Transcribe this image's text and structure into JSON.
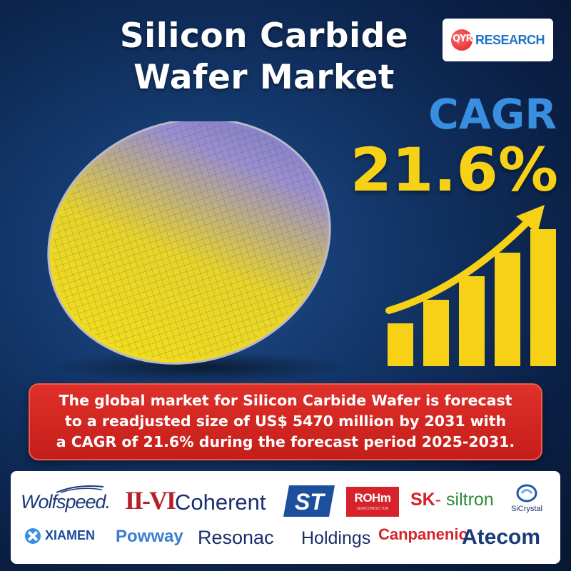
{
  "title": {
    "line1": "Silicon Carbide",
    "line2": "Wafer Market"
  },
  "logo": {
    "mark": "QYR",
    "text": "RESEARCH",
    "colors": {
      "mark": "#e02020",
      "text": "#1b74c9"
    }
  },
  "cagr": {
    "label": "CAGR",
    "value": "21.6%"
  },
  "chart_visual": {
    "type": "bar",
    "bar_count": 5,
    "trend": "increasing",
    "arrow": "up-right",
    "color": "#f7d116"
  },
  "message": {
    "line1": "The global market for Silicon Carbide Wafer is forecast",
    "line2": "to a readjusted size of US$ 5470 million by 2031 with",
    "line3": "a CAGR of 21.6% during the forecast period 2025-2031."
  },
  "companies": {
    "wolfspeed": "Wolfspeed.",
    "iivi": "II-VI",
    "coherent": "Coherent",
    "st": "ST",
    "rohm": "ROHm",
    "rohm_sub": "SEMICONDUCTOR",
    "sk": "SK",
    "siltron": "siltron",
    "sicrystal": "SiCrystal",
    "xiamen": "XIAMEN",
    "powway": "Powway",
    "resonac": "Resonac",
    "holdings": "Holdings",
    "capanenion": "Canpanenio",
    "atecom": "Atecom"
  },
  "colors": {
    "background": "#123466",
    "title": "#ffffff",
    "cagr_label": "#3a8ee0",
    "cagr_value": "#f7d116",
    "message_bg": "#d02520",
    "wafer": "#f0d020"
  },
  "icons": [
    "wafer-image",
    "growth-bars-icon",
    "up-arrow-icon",
    "wolfspeed-logo-icon",
    "st-logo-icon",
    "sicrystal-logo-icon",
    "xiamen-logo-icon"
  ]
}
